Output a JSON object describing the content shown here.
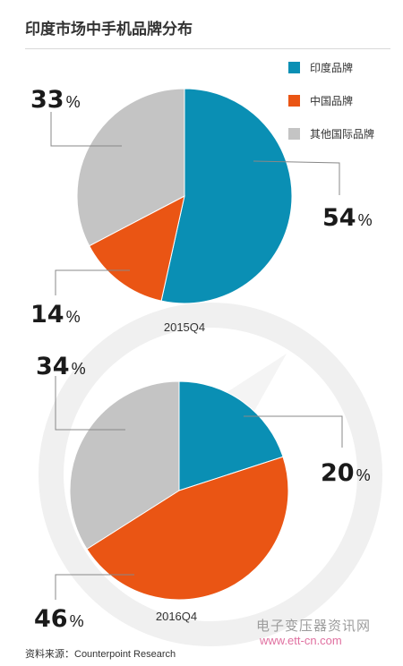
{
  "title": "印度市场中手机品牌分布",
  "legend": [
    {
      "label": "印度品牌",
      "color": "#0a8fb4"
    },
    {
      "label": "中国品牌",
      "color": "#ea5514"
    },
    {
      "label": "其他国际品牌",
      "color": "#c4c4c4"
    }
  ],
  "chart_data": [
    {
      "type": "pie",
      "title": "2015Q4",
      "slices": [
        {
          "name": "印度品牌",
          "value": 54,
          "label": "54",
          "color": "#0a8fb4"
        },
        {
          "name": "中国品牌",
          "value": 14,
          "label": "14",
          "color": "#ea5514"
        },
        {
          "name": "其他国际品牌",
          "value": 33,
          "label": "33",
          "color": "#c4c4c4"
        }
      ]
    },
    {
      "type": "pie",
      "title": "2016Q4",
      "slices": [
        {
          "name": "印度品牌",
          "value": 20,
          "label": "20",
          "color": "#0a8fb4"
        },
        {
          "name": "中国品牌",
          "value": 46,
          "label": "46",
          "color": "#ea5514"
        },
        {
          "name": "其他国际品牌",
          "value": 34,
          "label": "34",
          "color": "#c4c4c4"
        }
      ]
    }
  ],
  "percent_sign": "%",
  "source": "资料来源：Counterpoint Research",
  "watermark": {
    "text": "电子变压器资讯网",
    "url": "www.ett-cn.com"
  }
}
